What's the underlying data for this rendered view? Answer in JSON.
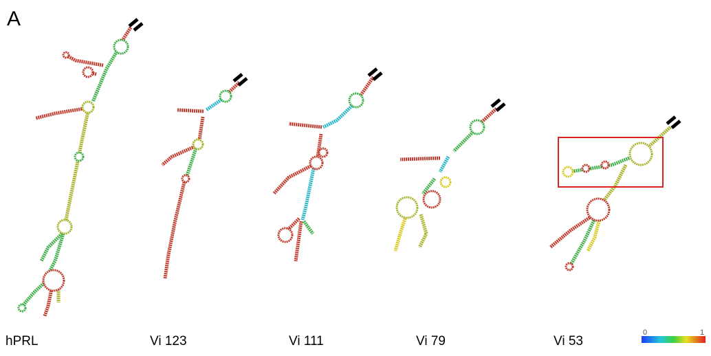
{
  "panel_label": "A",
  "structures": [
    {
      "label": "hPRL"
    },
    {
      "label": "Vi 123"
    },
    {
      "label": "Vi 111"
    },
    {
      "label": "Vi 79"
    },
    {
      "label": "Vi 53"
    }
  ],
  "colorbar": {
    "min": 0,
    "max": 1
  }
}
